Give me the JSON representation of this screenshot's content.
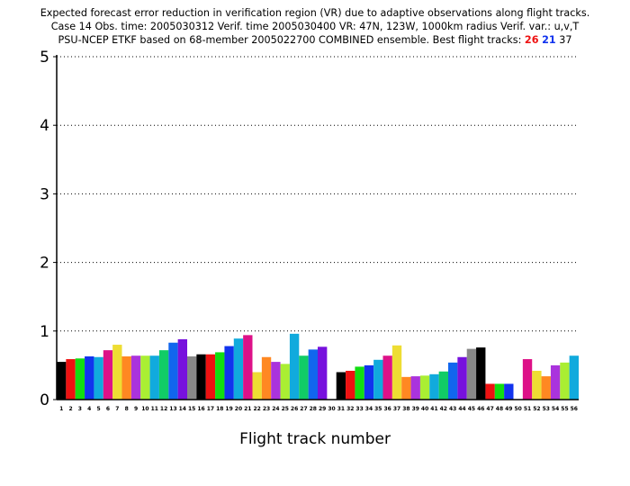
{
  "title": {
    "line1": "Expected forecast error reduction in verification region (VR) due to adaptive observations along flight tracks.",
    "line2": "Case 14   Obs. time: 2005030312   Verif. time 2005030400   VR: 47N, 123W, 1000km radius   Verif. var.: u,v,T",
    "line3_prefix": "PSU-NCEP ETKF based on 68-member 2005022700 COMBINED ensemble.   Best flight tracks: ",
    "best_tracks": [
      {
        "label": "26",
        "color": "#ee1111"
      },
      {
        "label": "21",
        "color": "#1133ee"
      },
      {
        "label": "37",
        "color": "#000000"
      }
    ]
  },
  "chart_data": {
    "type": "bar",
    "xlabel": "Flight track number",
    "ylabel": "",
    "ylim": [
      0,
      5
    ],
    "yticks": [
      "0",
      "1",
      "2",
      "3",
      "4",
      "5"
    ],
    "grid": "dotted horizontal at each y tick",
    "categories": [
      "1",
      "2",
      "3",
      "4",
      "5",
      "6",
      "7",
      "8",
      "9",
      "10",
      "11",
      "12",
      "13",
      "14",
      "15",
      "16",
      "17",
      "18",
      "19",
      "20",
      "21",
      "22",
      "23",
      "24",
      "25",
      "26",
      "27",
      "28",
      "29",
      "30",
      "31",
      "32",
      "33",
      "34",
      "35",
      "36",
      "37",
      "38",
      "39",
      "40",
      "41",
      "42",
      "43",
      "44",
      "45",
      "46",
      "47",
      "48",
      "49",
      "50",
      "51",
      "52",
      "53",
      "54",
      "55",
      "56"
    ],
    "values": [
      0.55,
      0.59,
      0.6,
      0.63,
      0.62,
      0.72,
      0.8,
      0.63,
      0.64,
      0.64,
      0.64,
      0.72,
      0.83,
      0.88,
      0.63,
      0.66,
      0.66,
      0.69,
      0.78,
      0.89,
      0.94,
      0.4,
      0.62,
      0.55,
      0.52,
      0.96,
      0.64,
      0.73,
      0.77,
      0,
      0.4,
      0.42,
      0.48,
      0.5,
      0.58,
      0.64,
      0.79,
      0.33,
      0.34,
      0.35,
      0.37,
      0.41,
      0.54,
      0.62,
      0.74,
      0.76,
      0.23,
      0.23,
      0.23,
      0,
      0.59,
      0.42,
      0.34,
      0.5,
      0.54,
      0.64
    ],
    "colors": [
      "#000000",
      "#ee1111",
      "#11dd11",
      "#1133ee",
      "#11aadd",
      "#dd1188",
      "#eedd33",
      "#ff8822",
      "#aa33dd",
      "#aaee33",
      "#11aadd",
      "#11cc66",
      "#1166ee",
      "#7711dd",
      "#888888",
      "#000000",
      "#ee1111",
      "#11dd11",
      "#1133ee",
      "#11aadd",
      "#dd1188",
      "#eedd33",
      "#ff8822",
      "#aa33dd",
      "#aaee33",
      "#11aadd",
      "#11cc66",
      "#1166ee",
      "#7711dd",
      "#888888",
      "#000000",
      "#ee1111",
      "#11dd11",
      "#1133ee",
      "#11aadd",
      "#dd1188",
      "#eedd33",
      "#ff8822",
      "#aa33dd",
      "#aaee33",
      "#11aadd",
      "#11cc66",
      "#1166ee",
      "#7711dd",
      "#888888",
      "#000000",
      "#ee1111",
      "#11dd11",
      "#1133ee",
      "#11aadd",
      "#dd1188",
      "#eedd33",
      "#ff8822",
      "#aa33dd",
      "#aaee33",
      "#11aadd"
    ]
  }
}
